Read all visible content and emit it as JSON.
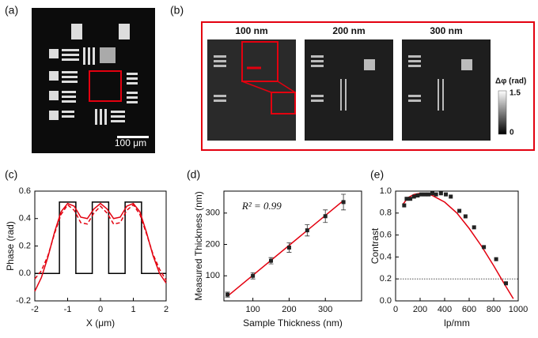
{
  "images": [
    {
      "label": "(a)",
      "scale_bar": "100 μm"
    },
    {
      "label": "(b)",
      "titles": [
        "100 nm",
        "200 nm",
        "300 nm"
      ],
      "colorbar": {
        "title": "Δφ (rad)",
        "max": 1.5,
        "min": 0
      }
    }
  ],
  "chart_data": [
    {
      "type": "line",
      "label": "(c)",
      "x_label": "X (μm)",
      "y_label": "Phase (rad)",
      "xlim": [
        -2,
        2
      ],
      "ylim": [
        -0.2,
        0.6
      ],
      "xticks": [
        -2,
        -1,
        0,
        1,
        2
      ],
      "yticks": [
        -0.2,
        {
          "value": 0,
          "label": "0.0"
        },
        0.2,
        0.4,
        0.6
      ],
      "series": [
        {
          "color": "#000000",
          "style": "solid",
          "x": [
            -2,
            -1.25,
            -1.25,
            -0.75,
            -0.75,
            -0.25,
            -0.25,
            0.25,
            0.25,
            0.75,
            0.75,
            1.25,
            1.25,
            2
          ],
          "values": [
            0,
            0,
            0.52,
            0.52,
            0,
            0,
            0.52,
            0.52,
            0,
            0,
            0.52,
            0.52,
            0,
            0
          ]
        },
        {
          "color": "#e3000f",
          "style": "solid",
          "x": [
            -2,
            -1.8,
            -1.6,
            -1.4,
            -1.2,
            -1,
            -0.8,
            -0.6,
            -0.4,
            -0.2,
            0,
            0.2,
            0.4,
            0.6,
            0.8,
            1,
            1.2,
            1.4,
            1.6,
            1.8,
            2
          ],
          "values": [
            -0.13,
            -0.03,
            0.12,
            0.3,
            0.45,
            0.51,
            0.49,
            0.41,
            0.4,
            0.47,
            0.51,
            0.47,
            0.4,
            0.41,
            0.49,
            0.51,
            0.45,
            0.3,
            0.13,
            0.0,
            -0.07
          ]
        },
        {
          "color": "#e3000f",
          "style": "dashed",
          "x": [
            -2,
            -1.8,
            -1.6,
            -1.4,
            -1.2,
            -1,
            -0.8,
            -0.6,
            -0.4,
            -0.2,
            0,
            0.2,
            0.4,
            0.6,
            0.8,
            1,
            1.2,
            1.4,
            1.6,
            1.8,
            2
          ],
          "values": [
            -0.04,
            0.02,
            0.13,
            0.29,
            0.43,
            0.5,
            0.46,
            0.37,
            0.36,
            0.44,
            0.49,
            0.44,
            0.36,
            0.37,
            0.46,
            0.5,
            0.43,
            0.29,
            0.14,
            0.03,
            -0.05
          ]
        }
      ]
    },
    {
      "type": "scatter",
      "label": "(d)",
      "x_label": "Sample Thickness (nm)",
      "y_label": "Measured Thickness (nm)",
      "annotation": "R² = 0.99",
      "xlim": [
        20,
        400
      ],
      "ylim": [
        20,
        370
      ],
      "xticks": [
        100,
        200,
        300
      ],
      "yticks": [
        100,
        200,
        300
      ],
      "series": [
        {
          "color": "#e3000f",
          "style": "solid",
          "x": [
            30,
            350
          ],
          "values": [
            35,
            340
          ]
        },
        {
          "color": "#222222",
          "marker": "square",
          "x": [
            30,
            100,
            150,
            200,
            250,
            300,
            350
          ],
          "values": [
            40,
            100,
            148,
            190,
            245,
            290,
            335
          ],
          "errors": [
            8,
            10,
            10,
            15,
            18,
            20,
            25
          ]
        }
      ]
    },
    {
      "type": "scatter",
      "label": "(e)",
      "x_label": "lp/mm",
      "y_label": "Contrast",
      "xlim": [
        0,
        1000
      ],
      "ylim": [
        0,
        1
      ],
      "xticks": [
        0,
        200,
        400,
        600,
        800,
        1000
      ],
      "yticks": [
        {
          "value": 0,
          "label": "0.0"
        },
        0.2,
        0.4,
        0.6,
        0.8,
        {
          "value": 1,
          "label": "1.0"
        }
      ],
      "reference_line": 0.2,
      "series": [
        {
          "color": "#e3000f",
          "style": "solid",
          "x": [
            60,
            100,
            150,
            200,
            250,
            300,
            400,
            500,
            600,
            700,
            800,
            900,
            960
          ],
          "values": [
            0.88,
            0.94,
            0.97,
            0.98,
            0.98,
            0.96,
            0.9,
            0.8,
            0.66,
            0.5,
            0.32,
            0.13,
            0.02
          ]
        },
        {
          "color": "#222222",
          "marker": "square",
          "x": [
            70,
            90,
            120,
            150,
            180,
            210,
            240,
            270,
            300,
            330,
            370,
            410,
            450,
            520,
            570,
            640,
            720,
            820,
            900
          ],
          "values": [
            0.87,
            0.93,
            0.93,
            0.95,
            0.96,
            0.97,
            0.97,
            0.97,
            0.98,
            0.97,
            0.98,
            0.97,
            0.95,
            0.82,
            0.77,
            0.67,
            0.49,
            0.38,
            0.16
          ]
        }
      ]
    }
  ]
}
